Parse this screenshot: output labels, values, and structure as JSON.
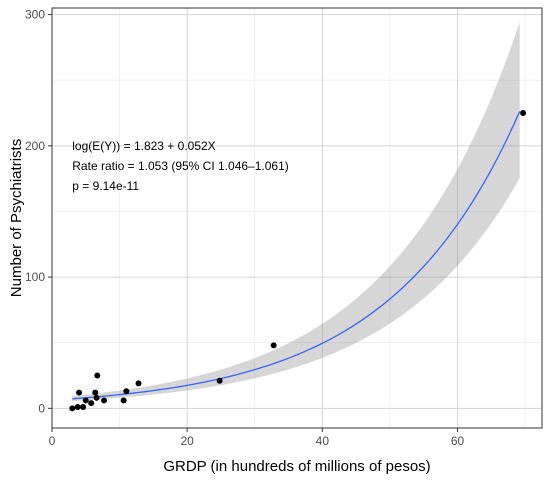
{
  "chart_data": {
    "type": "scatter",
    "title": "",
    "xlabel": "GRDP (in hundreds of millions of pesos)",
    "ylabel": "Number of Psychiatrists",
    "xlim": [
      0,
      72.5
    ],
    "ylim": [
      -15,
      305
    ],
    "x_ticks": [
      0,
      20,
      40,
      60
    ],
    "y_ticks": [
      0,
      100,
      200,
      300
    ],
    "x_tick_labels": [
      "0",
      "20",
      "40",
      "60"
    ],
    "y_tick_labels": [
      "0",
      "100",
      "200",
      "300"
    ],
    "grid": true,
    "points": [
      {
        "x": 3.0,
        "y": 0
      },
      {
        "x": 3.8,
        "y": 1
      },
      {
        "x": 4.0,
        "y": 12
      },
      {
        "x": 4.6,
        "y": 1
      },
      {
        "x": 5.0,
        "y": 6
      },
      {
        "x": 5.8,
        "y": 4
      },
      {
        "x": 6.4,
        "y": 12
      },
      {
        "x": 6.6,
        "y": 8
      },
      {
        "x": 6.7,
        "y": 25
      },
      {
        "x": 7.7,
        "y": 6
      },
      {
        "x": 10.6,
        "y": 6
      },
      {
        "x": 11.0,
        "y": 13
      },
      {
        "x": 12.8,
        "y": 19
      },
      {
        "x": 24.8,
        "y": 21
      },
      {
        "x": 32.8,
        "y": 48
      },
      {
        "x": 69.7,
        "y": 225
      }
    ],
    "fit": {
      "model": "poisson",
      "intercept": 1.823,
      "slope": 0.052,
      "x_range": [
        3.0,
        69.2
      ],
      "ci_lower_rel": 0.775,
      "ci_upper_rel": 1.3,
      "line_color": "#3366FF",
      "band_color": "#999999"
    },
    "annotations": [
      "log(E(Y)) = 1.823 + 0.052X",
      "Rate ratio = 1.053 (95% CI 1.046–1.061)",
      "p = 9.14e-11"
    ],
    "annotation_anchor": {
      "x": 3.0,
      "y": 200
    }
  }
}
